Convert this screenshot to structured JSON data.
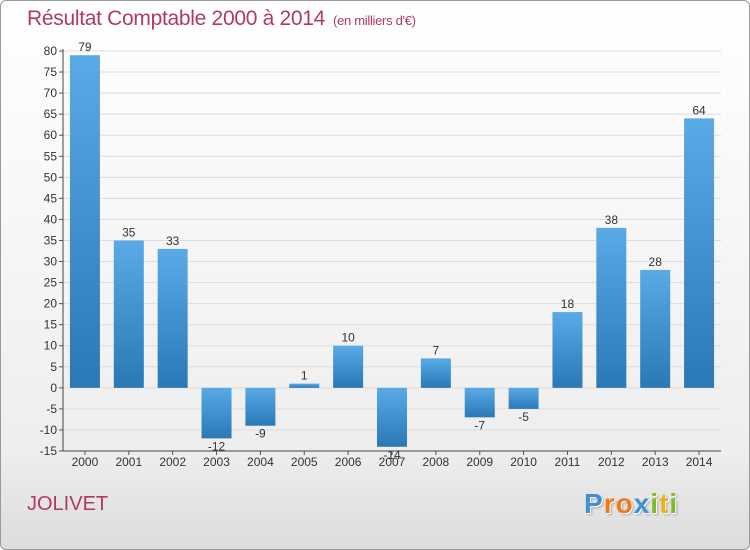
{
  "title": "Résultat Comptable 2000 à 2014",
  "title_unit": "(en milliers d'€)",
  "commune": "JOLIVET",
  "logo": {
    "letters": [
      "P",
      "r",
      "o",
      "x",
      "i",
      "t",
      "i"
    ],
    "colors": [
      "#3f8fd4",
      "#f07a18",
      "#f07a18",
      "#3f8fd4",
      "#7cba2a",
      "#f0b018",
      "#7cba2a"
    ]
  },
  "colors": {
    "bar_top": "#5aaae8",
    "bar_bottom": "#2a78b6",
    "title": "#b03a62",
    "grid": "#dddddd"
  },
  "chart_data": {
    "type": "bar",
    "title": "Résultat Comptable 2000 à 2014",
    "ylabel": "en milliers d'€",
    "categories": [
      "2000",
      "2001",
      "2002",
      "2003",
      "2004",
      "2005",
      "2006",
      "2007",
      "2008",
      "2009",
      "2010",
      "2011",
      "2012",
      "2013",
      "2014"
    ],
    "values": [
      79,
      35,
      33,
      -12,
      -9,
      1,
      10,
      -14,
      7,
      -7,
      -5,
      18,
      38,
      28,
      64
    ],
    "ylim": [
      -15,
      80
    ],
    "yticks": [
      -15,
      -10,
      -5,
      0,
      5,
      10,
      15,
      20,
      25,
      30,
      35,
      40,
      45,
      50,
      55,
      60,
      65,
      70,
      75,
      80
    ],
    "grid": true
  }
}
